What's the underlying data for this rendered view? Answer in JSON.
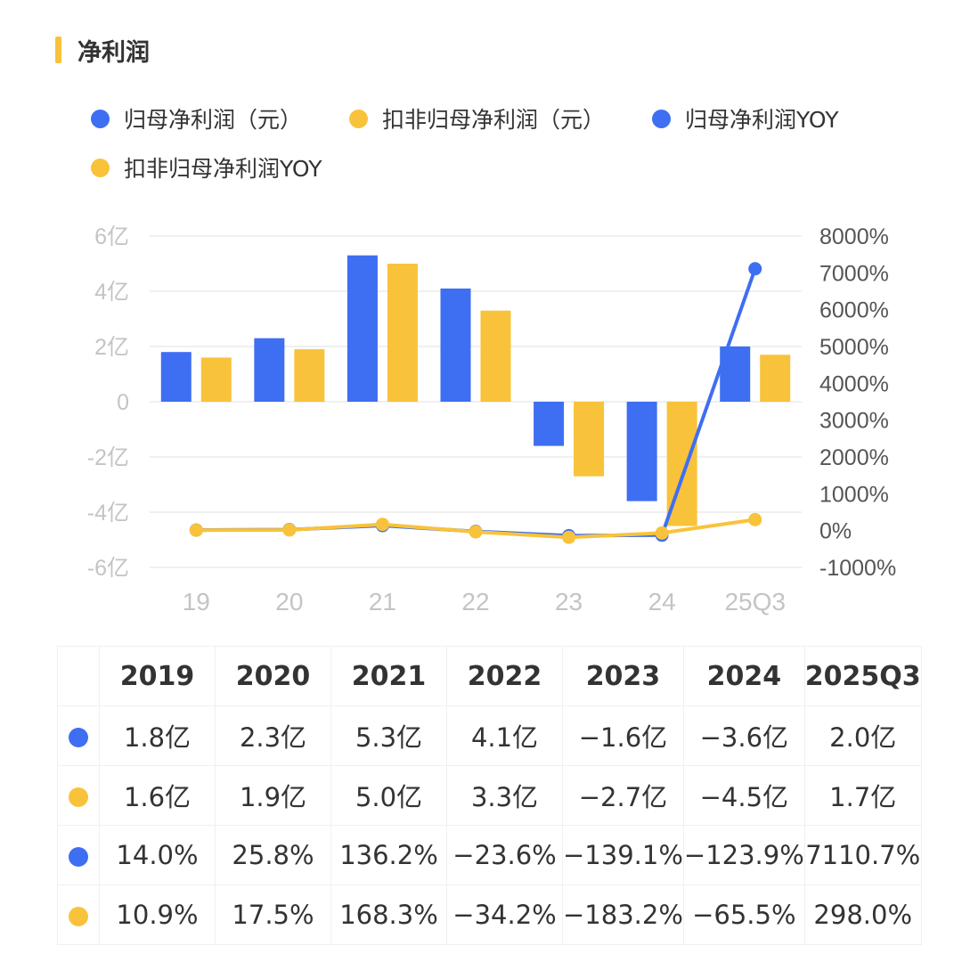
{
  "header": {
    "title": "净利润",
    "accent_color": "#F8C33A"
  },
  "colors": {
    "blue": "#3E6EF2",
    "yellow": "#F8C33A"
  },
  "legend": [
    {
      "label": "归母净利润（元）",
      "color": "#3E6EF2"
    },
    {
      "label": "扣非归母净利润（元）",
      "color": "#F8C33A"
    },
    {
      "label": "归母净利润YOY",
      "color": "#3E6EF2"
    },
    {
      "label": "扣非归母净利润YOY",
      "color": "#F8C33A"
    }
  ],
  "chart_data": {
    "type": "bar",
    "categories": [
      "19",
      "20",
      "21",
      "22",
      "23",
      "24",
      "25Q3"
    ],
    "left_axis": {
      "ylim": [
        -6,
        6
      ],
      "ticks": [
        6,
        4,
        2,
        0,
        -2,
        -4,
        -6
      ],
      "tick_labels": [
        "6亿",
        "4亿",
        "2亿",
        "0",
        "-2亿",
        "-4亿",
        "-6亿"
      ]
    },
    "right_axis": {
      "ylim": [
        -1000,
        8000
      ],
      "ticks": [
        8000,
        7000,
        6000,
        5000,
        4000,
        3000,
        2000,
        1000,
        0,
        -1000
      ],
      "tick_labels": [
        "8000%",
        "7000%",
        "6000%",
        "5000%",
        "4000%",
        "3000%",
        "2000%",
        "1000%",
        "0%",
        "-1000%"
      ]
    },
    "bar_series": [
      {
        "name": "归母净利润（元）",
        "color": "#3E6EF2",
        "values": [
          1.8,
          2.3,
          5.3,
          4.1,
          -1.6,
          -3.6,
          2.0
        ]
      },
      {
        "name": "扣非归母净利润（元）",
        "color": "#F8C33A",
        "values": [
          1.6,
          1.9,
          5.0,
          3.3,
          -2.7,
          -4.5,
          1.7
        ]
      }
    ],
    "line_series": [
      {
        "name": "归母净利润YOY",
        "color": "#3E6EF2",
        "values": [
          14.0,
          25.8,
          136.2,
          -23.6,
          -139.1,
          -123.9,
          7110.7
        ]
      },
      {
        "name": "扣非归母净利润YOY",
        "color": "#F8C33A",
        "values": [
          10.9,
          17.5,
          168.3,
          -34.2,
          -183.2,
          -65.5,
          298.0
        ]
      }
    ],
    "grid": true
  },
  "table": {
    "headers": [
      "2019",
      "2020",
      "2021",
      "2022",
      "2023",
      "2024",
      "2025Q3"
    ],
    "rows": [
      {
        "color": "#3E6EF2",
        "cells": [
          "1.8亿",
          "2.3亿",
          "5.3亿",
          "4.1亿",
          "−1.6亿",
          "−3.6亿",
          "2.0亿"
        ]
      },
      {
        "color": "#F8C33A",
        "cells": [
          "1.6亿",
          "1.9亿",
          "5.0亿",
          "3.3亿",
          "−2.7亿",
          "−4.5亿",
          "1.7亿"
        ]
      },
      {
        "color": "#3E6EF2",
        "cells": [
          "14.0%",
          "25.8%",
          "136.2%",
          "−23.6%",
          "−139.1%",
          "−123.9%",
          "7110.7%"
        ]
      },
      {
        "color": "#F8C33A",
        "cells": [
          "10.9%",
          "17.5%",
          "168.3%",
          "−34.2%",
          "−183.2%",
          "−65.5%",
          "298.0%"
        ]
      }
    ]
  }
}
